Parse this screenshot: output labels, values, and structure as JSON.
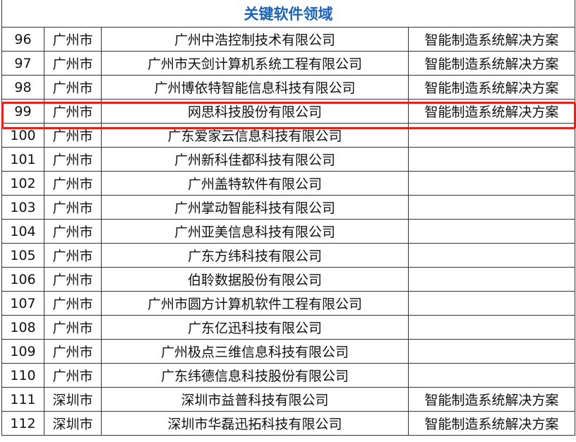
{
  "title": "关键软件领域",
  "highlight_color": "#e3211d",
  "highlighted_row": "99",
  "rows": [
    {
      "no": "96",
      "city": "广州市",
      "company": "广州中浩控制技术有限公司",
      "field": "智能制造系统解决方案"
    },
    {
      "no": "97",
      "city": "广州市",
      "company": "广州市天剑计算机系统工程有限公司",
      "field": "智能制造系统解决方案"
    },
    {
      "no": "98",
      "city": "广州市",
      "company": "广州博依特智能信息科技有限公司",
      "field": "智能制造系统解决方案"
    },
    {
      "no": "99",
      "city": "广州市",
      "company": "网思科技股份有限公司",
      "field": "智能制造系统解决方案"
    },
    {
      "no": "100",
      "city": "广州市",
      "company": "广东爱家云信息科技有限公司",
      "field": ""
    },
    {
      "no": "101",
      "city": "广州市",
      "company": "广州新科佳都科技有限公司",
      "field": ""
    },
    {
      "no": "102",
      "city": "广州市",
      "company": "广州盖特软件有限公司",
      "field": ""
    },
    {
      "no": "103",
      "city": "广州市",
      "company": "广州掌动智能科技有限公司",
      "field": ""
    },
    {
      "no": "104",
      "city": "广州市",
      "company": "广州亚美信息科技有限公司",
      "field": ""
    },
    {
      "no": "105",
      "city": "广州市",
      "company": "广东方纬科技有限公司",
      "field": ""
    },
    {
      "no": "106",
      "city": "广州市",
      "company": "伯聆数据股份有限公司",
      "field": ""
    },
    {
      "no": "107",
      "city": "广州市",
      "company": "广州市圆方计算机软件工程有限公司",
      "field": ""
    },
    {
      "no": "108",
      "city": "广州市",
      "company": "广东亿迅科技有限公司",
      "field": ""
    },
    {
      "no": "109",
      "city": "广州市",
      "company": "广州极点三维信息科技有限公司",
      "field": ""
    },
    {
      "no": "110",
      "city": "广州市",
      "company": "广东纬德信息科技股份有限公司",
      "field": ""
    },
    {
      "no": "111",
      "city": "深圳市",
      "company": "深圳市益普科技有限公司",
      "field": "智能制造系统解决方案"
    },
    {
      "no": "112",
      "city": "深圳市",
      "company": "深圳市华磊迅拓科技有限公司",
      "field": "智能制造系统解决方案"
    }
  ]
}
